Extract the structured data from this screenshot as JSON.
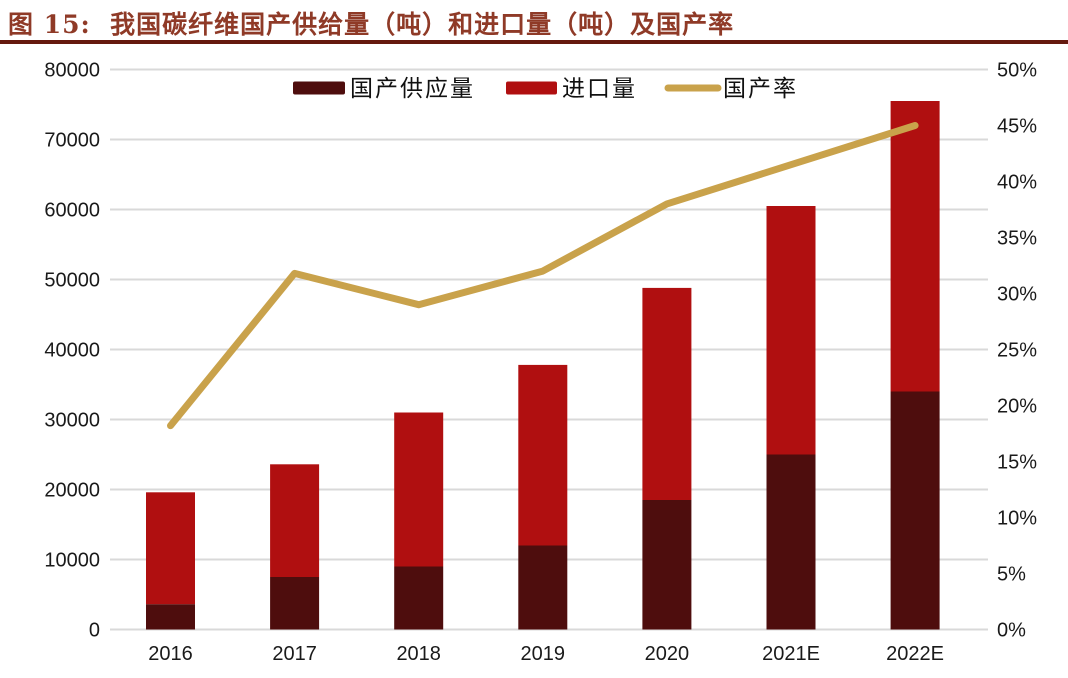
{
  "title": "图 15:  我国碳纤维国产供给量（吨）和进口量（吨）及国产率",
  "colors": {
    "domestic_bar": "#4E0D0D",
    "import_bar": "#B00F10",
    "rate_line": "#C9A24B",
    "grid": "#D9D9D9",
    "title_text": "#8F3A27",
    "title_rule": "#65190E",
    "axis_text": "#1A1A1A"
  },
  "legend": {
    "items": [
      {
        "label": "国产供应量",
        "swatch": "dark-red-bar"
      },
      {
        "label": "进口量",
        "swatch": "red-bar"
      },
      {
        "label": "国产率",
        "swatch": "gold-line"
      }
    ],
    "position": "top-center"
  },
  "chart_data": {
    "type": "bar",
    "subtype": "stacked-bars-with-line-dual-axis",
    "title": "图 15:  我国碳纤维国产供给量（吨）和进口量（吨）及国产率",
    "categories": [
      "2016",
      "2017",
      "2018",
      "2019",
      "2020",
      "2021E",
      "2022E"
    ],
    "series": [
      {
        "name": "国产供应量",
        "kind": "bar-stacked",
        "axis": "left",
        "color": "#4E0D0D",
        "values": [
          3600,
          7500,
          9000,
          12000,
          18500,
          25000,
          34000
        ]
      },
      {
        "name": "进口量",
        "kind": "bar-stacked",
        "axis": "left",
        "color": "#B00F10",
        "values": [
          16000,
          16100,
          22000,
          25800,
          30300,
          35500,
          41500
        ]
      },
      {
        "name": "国产率",
        "kind": "line",
        "axis": "right",
        "color": "#C9A24B",
        "values": [
          18.2,
          31.8,
          29,
          32,
          38,
          41.5,
          45
        ]
      }
    ],
    "stack_totals": [
      19600,
      23600,
      31000,
      37800,
      48800,
      60500,
      75500
    ],
    "left_axis": {
      "min": 0,
      "max": 80000,
      "ticks": [
        {
          "value": 0,
          "label": "0"
        },
        {
          "value": 10000,
          "label": "10000"
        },
        {
          "value": 20000,
          "label": "20000"
        },
        {
          "value": 30000,
          "label": "30000"
        },
        {
          "value": 40000,
          "label": "40000"
        },
        {
          "value": 50000,
          "label": "50000"
        },
        {
          "value": 60000,
          "label": "60000"
        },
        {
          "value": 70000,
          "label": "70000"
        },
        {
          "value": 80000,
          "label": "80000"
        }
      ]
    },
    "right_axis": {
      "min": 0,
      "max": 50,
      "ticks": [
        {
          "value": 0,
          "label": "0%"
        },
        {
          "value": 5,
          "label": "5%"
        },
        {
          "value": 10,
          "label": "10%"
        },
        {
          "value": 15,
          "label": "15%"
        },
        {
          "value": 20,
          "label": "20%"
        },
        {
          "value": 25,
          "label": "25%"
        },
        {
          "value": 30,
          "label": "30%"
        },
        {
          "value": 35,
          "label": "35%"
        },
        {
          "value": 40,
          "label": "40%"
        },
        {
          "value": 45,
          "label": "45%"
        },
        {
          "value": 50,
          "label": "50%"
        }
      ]
    },
    "grid": "horizontal",
    "legend_position": "top-center"
  }
}
